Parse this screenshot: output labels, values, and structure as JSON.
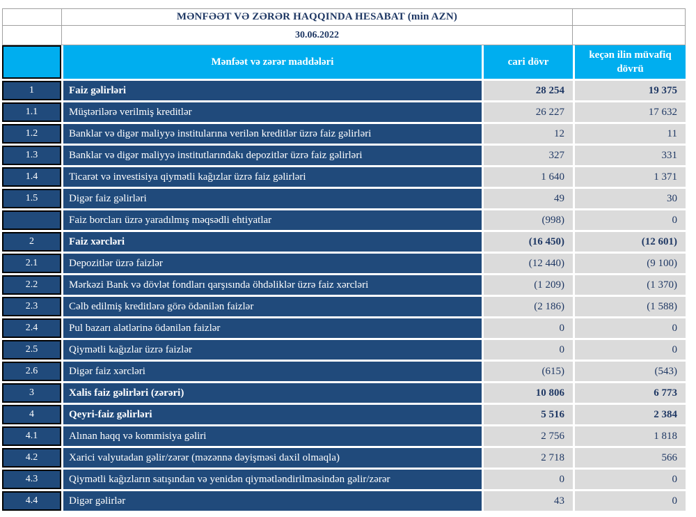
{
  "report": {
    "title": "MƏNFƏƏT VƏ ZƏRƏR HAQQINDA HESABAT (min AZN)",
    "date": "30.06.2022"
  },
  "columns": {
    "items": "Mənfəət və zərər maddələri",
    "current": "cari dövr",
    "previous": "keçən ilin müvafiq dövrü"
  },
  "rows": [
    {
      "num": "1",
      "label": "Faiz  gəlirləri",
      "current": "28 254",
      "previous": "19 375",
      "bold": true
    },
    {
      "num": "1.1",
      "label": "Müştərilərə verilmiş kreditlər",
      "current": "26 227",
      "previous": "17 632",
      "bold": false
    },
    {
      "num": "1.2",
      "label": "Banklar və digər maliyyə institularına verilən kreditlər üzrə faiz gəlirləri",
      "current": "12",
      "previous": "11",
      "bold": false
    },
    {
      "num": "1.3",
      "label": "Banklar və digər maliyyə institutlarındakı depozitlər üzrə faiz gəlirləri",
      "current": "327",
      "previous": "331",
      "bold": false
    },
    {
      "num": "1.4",
      "label": "Ticarət və investisiya qiymətli kağızlar üzrə faiz gəlirləri",
      "current": "1 640",
      "previous": "1 371",
      "bold": false
    },
    {
      "num": "1.5",
      "label": "Digər faiz gəlirləri",
      "current": "49",
      "previous": "30",
      "bold": false
    },
    {
      "num": "",
      "label": "Faiz borcları üzrə yaradılmış məqsədli ehtiyatlar",
      "current": "(998)",
      "previous": "0",
      "bold": false
    },
    {
      "num": "2",
      "label": "Faiz xərcləri",
      "current": "(16 450)",
      "previous": "(12 601)",
      "bold": true
    },
    {
      "num": "2.1",
      "label": "Depozitlər üzrə faizlər",
      "current": "(12 440)",
      "previous": "(9 100)",
      "bold": false
    },
    {
      "num": "2.2",
      "label": "Mərkəzi Bank və dövlət fondları qarşısında öhdəliklər üzrə faiz xərcləri",
      "current": "(1 209)",
      "previous": "(1 370)",
      "bold": false
    },
    {
      "num": "2.3",
      "label": "Cəlb edilmiş kreditlərə görə ödənilən faizlər",
      "current": "(2 186)",
      "previous": "(1 588)",
      "bold": false
    },
    {
      "num": "2.4",
      "label": "Pul bazarı alətlərinə ödənilən faizlər",
      "current": "0",
      "previous": "0",
      "bold": false
    },
    {
      "num": "2.5",
      "label": "Qiymətli kağızlar üzrə faizlər",
      "current": "0",
      "previous": "0",
      "bold": false
    },
    {
      "num": "2.6",
      "label": "Digər faiz xərcləri",
      "current": "(615)",
      "previous": "(543)",
      "bold": false
    },
    {
      "num": "3",
      "label": "Xalis faiz gəlirləri (zərəri)",
      "current": "10 806",
      "previous": "6 773",
      "bold": true
    },
    {
      "num": "4",
      "label": "Qeyri-faiz gəlirləri",
      "current": "5 516",
      "previous": "2 384",
      "bold": true
    },
    {
      "num": "4.1",
      "label": "Alınan haqq və kommisiya gəliri",
      "current": "2 756",
      "previous": "1 818",
      "bold": false
    },
    {
      "num": "4.2",
      "label": "Xarici valyutadan gəlir/zərər (məzənnə dəyişməsi daxil olmaqla)",
      "current": "2 718",
      "previous": "566",
      "bold": false
    },
    {
      "num": "4.3",
      "label": "Qiymətli kağızların satışından və yenidən qiymətləndirilməsindən gəlir/zərər",
      "current": "0",
      "previous": "0",
      "bold": false
    },
    {
      "num": "4.4",
      "label": "Digər gəlirlər",
      "current": "43",
      "previous": "0",
      "bold": false
    }
  ],
  "colors": {
    "header_cyan": "#00aeef",
    "row_dark_blue": "#204a7b",
    "value_cell_gray": "#dbdbdb",
    "value_text_navy": "#1f3864",
    "cell_border_black": "#000000",
    "title_border_gray": "#a0a0a0"
  }
}
